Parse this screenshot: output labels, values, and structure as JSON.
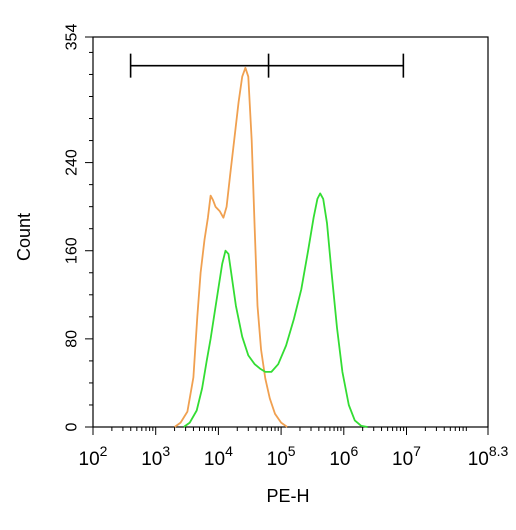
{
  "chart_data": {
    "type": "line",
    "xlabel": "PE-H",
    "ylabel": "Count",
    "x_scale": "log10",
    "xlim": [
      100,
      199526231
    ],
    "ylim": [
      0,
      354
    ],
    "y_ticks": [
      0,
      80,
      160,
      240,
      354
    ],
    "x_ticks": [
      {
        "value": 100,
        "base": "10",
        "exp": "2"
      },
      {
        "value": 1000,
        "base": "10",
        "exp": "3"
      },
      {
        "value": 10000,
        "base": "10",
        "exp": "4"
      },
      {
        "value": 100000,
        "base": "10",
        "exp": "5"
      },
      {
        "value": 1000000,
        "base": "10",
        "exp": "6"
      },
      {
        "value": 10000000,
        "base": "10",
        "exp": "7"
      },
      {
        "value": 199526231,
        "base": "10",
        "exp": "8.3"
      }
    ],
    "gate": {
      "x_start": 398,
      "x_mid": 63096,
      "x_end": 8913000,
      "y": 328
    },
    "series": [
      {
        "color": "#f0a050",
        "points": [
          [
            2000,
            0
          ],
          [
            2500,
            4
          ],
          [
            3200,
            14
          ],
          [
            4000,
            45
          ],
          [
            4600,
            100
          ],
          [
            5200,
            140
          ],
          [
            6000,
            170
          ],
          [
            6800,
            190
          ],
          [
            7500,
            210
          ],
          [
            8200,
            206
          ],
          [
            9000,
            200
          ],
          [
            10500,
            196
          ],
          [
            12000,
            190
          ],
          [
            13500,
            200
          ],
          [
            15500,
            230
          ],
          [
            18000,
            262
          ],
          [
            21000,
            295
          ],
          [
            24000,
            318
          ],
          [
            27000,
            326
          ],
          [
            30000,
            318
          ],
          [
            34000,
            260
          ],
          [
            38000,
            180
          ],
          [
            42000,
            110
          ],
          [
            48000,
            70
          ],
          [
            56000,
            44
          ],
          [
            66000,
            26
          ],
          [
            80000,
            12
          ],
          [
            100000,
            4
          ],
          [
            125000,
            0
          ]
        ]
      },
      {
        "color": "#33dd33",
        "points": [
          [
            2800,
            0
          ],
          [
            3500,
            4
          ],
          [
            4500,
            15
          ],
          [
            5500,
            35
          ],
          [
            6500,
            60
          ],
          [
            7500,
            80
          ],
          [
            8500,
            100
          ],
          [
            10000,
            126
          ],
          [
            11500,
            148
          ],
          [
            13000,
            160
          ],
          [
            14500,
            157
          ],
          [
            16000,
            140
          ],
          [
            19000,
            110
          ],
          [
            24000,
            82
          ],
          [
            30000,
            65
          ],
          [
            38000,
            57
          ],
          [
            46000,
            53
          ],
          [
            56000,
            50
          ],
          [
            70000,
            50
          ],
          [
            90000,
            57
          ],
          [
            120000,
            74
          ],
          [
            160000,
            98
          ],
          [
            210000,
            125
          ],
          [
            270000,
            160
          ],
          [
            330000,
            190
          ],
          [
            380000,
            207
          ],
          [
            420000,
            212
          ],
          [
            470000,
            207
          ],
          [
            540000,
            185
          ],
          [
            640000,
            140
          ],
          [
            780000,
            90
          ],
          [
            950000,
            50
          ],
          [
            1200000,
            20
          ],
          [
            1500000,
            6
          ],
          [
            1900000,
            1
          ],
          [
            2400000,
            0
          ]
        ]
      }
    ]
  }
}
